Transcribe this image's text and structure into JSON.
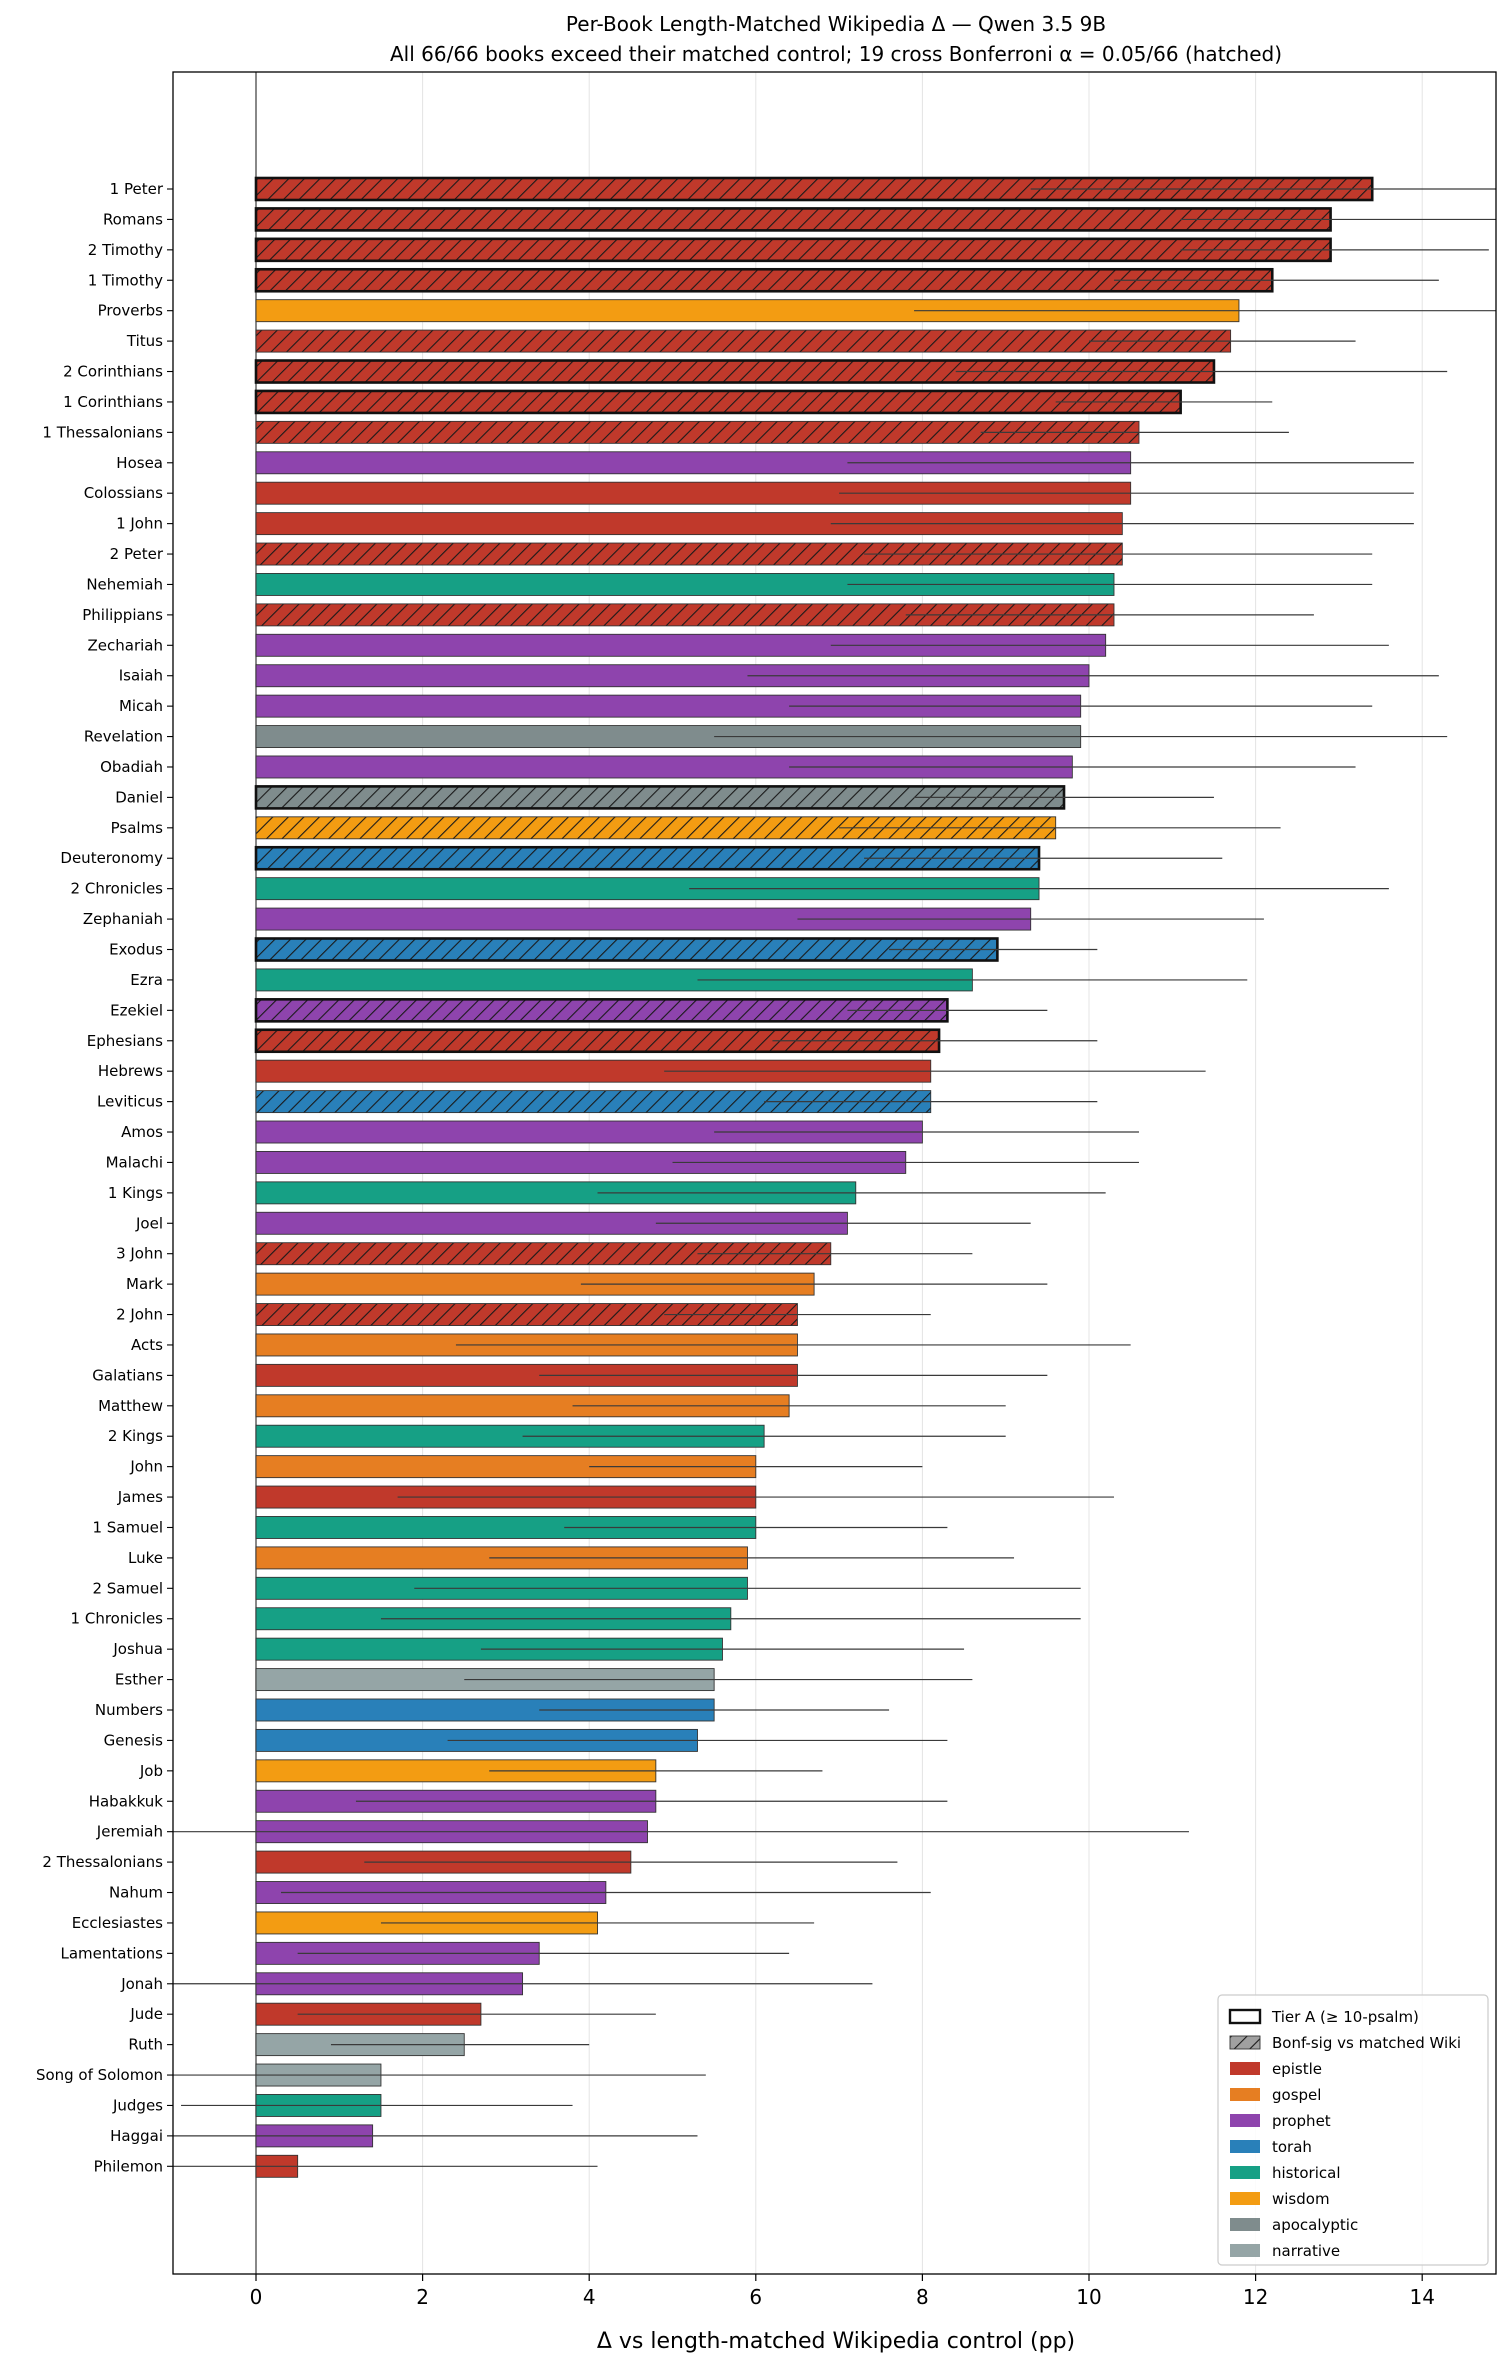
{
  "chart_data": {
    "type": "bar",
    "orientation": "horizontal",
    "title": "Per-Book Length-Matched Wikipedia Δ — Qwen 3.5 9B",
    "subtitle": "All 66/66 books exceed their matched control; 19 cross Bonferroni α = 0.05/66 (hatched)",
    "xlabel": "Δ vs length-matched Wikipedia control (pp)",
    "ylabel": "",
    "xlim": [
      -1.0,
      14.9
    ],
    "xticks": [
      0,
      2,
      4,
      6,
      8,
      10,
      12,
      14
    ],
    "grid": "vertical",
    "legend_position": "bottom-right",
    "colors": {
      "epistle": "#c0392b",
      "gospel": "#e67e22",
      "prophet": "#8e44ad",
      "torah": "#2980b9",
      "historical": "#16a085",
      "wisdom": "#f39c12",
      "apocalyptic": "#7f8c8d",
      "narrative": "#95a5a6"
    },
    "legend": [
      {
        "label": "Tier A (≥ 10-psalm)",
        "kind": "tier"
      },
      {
        "label": "Bonf-sig vs matched Wiki",
        "kind": "hatch"
      },
      {
        "label": "epistle",
        "kind": "epistle"
      },
      {
        "label": "gospel",
        "kind": "gospel"
      },
      {
        "label": "prophet",
        "kind": "prophet"
      },
      {
        "label": "torah",
        "kind": "torah"
      },
      {
        "label": "historical",
        "kind": "historical"
      },
      {
        "label": "wisdom",
        "kind": "wisdom"
      },
      {
        "label": "apocalyptic",
        "kind": "apocalyptic"
      },
      {
        "label": "narrative",
        "kind": "narrative"
      }
    ],
    "bars": [
      {
        "book": "1 Peter",
        "value": 13.4,
        "ci": [
          9.3,
          17.5
        ],
        "category": "epistle",
        "bonf": true,
        "tierA": true
      },
      {
        "book": "Romans",
        "value": 12.9,
        "ci": [
          11.1,
          14.9
        ],
        "category": "epistle",
        "bonf": true,
        "tierA": true
      },
      {
        "book": "2 Timothy",
        "value": 12.9,
        "ci": [
          11.1,
          14.8
        ],
        "category": "epistle",
        "bonf": true,
        "tierA": true
      },
      {
        "book": "1 Timothy",
        "value": 12.2,
        "ci": [
          10.3,
          14.2
        ],
        "category": "epistle",
        "bonf": true,
        "tierA": true
      },
      {
        "book": "Proverbs",
        "value": 11.8,
        "ci": [
          7.9,
          15.4
        ],
        "category": "wisdom",
        "bonf": false,
        "tierA": false
      },
      {
        "book": "Titus",
        "value": 11.7,
        "ci": [
          10.0,
          13.2
        ],
        "category": "epistle",
        "bonf": true,
        "tierA": false
      },
      {
        "book": "2 Corinthians",
        "value": 11.5,
        "ci": [
          8.4,
          14.3
        ],
        "category": "epistle",
        "bonf": true,
        "tierA": true
      },
      {
        "book": "1 Corinthians",
        "value": 11.1,
        "ci": [
          9.6,
          12.2
        ],
        "category": "epistle",
        "bonf": true,
        "tierA": true
      },
      {
        "book": "1 Thessalonians",
        "value": 10.6,
        "ci": [
          8.7,
          12.4
        ],
        "category": "epistle",
        "bonf": true,
        "tierA": false
      },
      {
        "book": "Hosea",
        "value": 10.5,
        "ci": [
          7.1,
          13.9
        ],
        "category": "prophet",
        "bonf": false,
        "tierA": false
      },
      {
        "book": "Colossians",
        "value": 10.5,
        "ci": [
          7.0,
          13.9
        ],
        "category": "epistle",
        "bonf": false,
        "tierA": false
      },
      {
        "book": "1 John",
        "value": 10.4,
        "ci": [
          6.9,
          13.9
        ],
        "category": "epistle",
        "bonf": false,
        "tierA": false
      },
      {
        "book": "2 Peter",
        "value": 10.4,
        "ci": [
          7.3,
          13.4
        ],
        "category": "epistle",
        "bonf": true,
        "tierA": false
      },
      {
        "book": "Nehemiah",
        "value": 10.3,
        "ci": [
          7.1,
          13.4
        ],
        "category": "historical",
        "bonf": false,
        "tierA": false
      },
      {
        "book": "Philippians",
        "value": 10.3,
        "ci": [
          7.8,
          12.7
        ],
        "category": "epistle",
        "bonf": true,
        "tierA": false
      },
      {
        "book": "Zechariah",
        "value": 10.2,
        "ci": [
          6.9,
          13.6
        ],
        "category": "prophet",
        "bonf": false,
        "tierA": false
      },
      {
        "book": "Isaiah",
        "value": 10.0,
        "ci": [
          5.9,
          14.2
        ],
        "category": "prophet",
        "bonf": false,
        "tierA": false
      },
      {
        "book": "Micah",
        "value": 9.9,
        "ci": [
          6.4,
          13.4
        ],
        "category": "prophet",
        "bonf": false,
        "tierA": false
      },
      {
        "book": "Revelation",
        "value": 9.9,
        "ci": [
          5.5,
          14.3
        ],
        "category": "apocalyptic",
        "bonf": false,
        "tierA": false
      },
      {
        "book": "Obadiah",
        "value": 9.8,
        "ci": [
          6.4,
          13.2
        ],
        "category": "prophet",
        "bonf": false,
        "tierA": false
      },
      {
        "book": "Daniel",
        "value": 9.7,
        "ci": [
          7.9,
          11.5
        ],
        "category": "apocalyptic",
        "bonf": true,
        "tierA": true
      },
      {
        "book": "Psalms",
        "value": 9.6,
        "ci": [
          7.0,
          12.3
        ],
        "category": "wisdom",
        "bonf": true,
        "tierA": false
      },
      {
        "book": "Deuteronomy",
        "value": 9.4,
        "ci": [
          7.3,
          11.6
        ],
        "category": "torah",
        "bonf": true,
        "tierA": true
      },
      {
        "book": "2 Chronicles",
        "value": 9.4,
        "ci": [
          5.2,
          13.6
        ],
        "category": "historical",
        "bonf": false,
        "tierA": false
      },
      {
        "book": "Zephaniah",
        "value": 9.3,
        "ci": [
          6.5,
          12.1
        ],
        "category": "prophet",
        "bonf": false,
        "tierA": false
      },
      {
        "book": "Exodus",
        "value": 8.9,
        "ci": [
          7.6,
          10.1
        ],
        "category": "torah",
        "bonf": true,
        "tierA": true
      },
      {
        "book": "Ezra",
        "value": 8.6,
        "ci": [
          5.3,
          11.9
        ],
        "category": "historical",
        "bonf": false,
        "tierA": false
      },
      {
        "book": "Ezekiel",
        "value": 8.3,
        "ci": [
          7.1,
          9.5
        ],
        "category": "prophet",
        "bonf": true,
        "tierA": true
      },
      {
        "book": "Ephesians",
        "value": 8.2,
        "ci": [
          6.2,
          10.1
        ],
        "category": "epistle",
        "bonf": true,
        "tierA": true
      },
      {
        "book": "Hebrews",
        "value": 8.1,
        "ci": [
          4.9,
          11.4
        ],
        "category": "epistle",
        "bonf": false,
        "tierA": false
      },
      {
        "book": "Leviticus",
        "value": 8.1,
        "ci": [
          6.1,
          10.1
        ],
        "category": "torah",
        "bonf": true,
        "tierA": false
      },
      {
        "book": "Amos",
        "value": 8.0,
        "ci": [
          5.5,
          10.6
        ],
        "category": "prophet",
        "bonf": false,
        "tierA": false
      },
      {
        "book": "Malachi",
        "value": 7.8,
        "ci": [
          5.0,
          10.6
        ],
        "category": "prophet",
        "bonf": false,
        "tierA": false
      },
      {
        "book": "1 Kings",
        "value": 7.2,
        "ci": [
          4.1,
          10.2
        ],
        "category": "historical",
        "bonf": false,
        "tierA": false
      },
      {
        "book": "Joel",
        "value": 7.1,
        "ci": [
          4.8,
          9.3
        ],
        "category": "prophet",
        "bonf": false,
        "tierA": false
      },
      {
        "book": "3 John",
        "value": 6.9,
        "ci": [
          5.3,
          8.6
        ],
        "category": "epistle",
        "bonf": true,
        "tierA": false
      },
      {
        "book": "Mark",
        "value": 6.7,
        "ci": [
          3.9,
          9.5
        ],
        "category": "gospel",
        "bonf": false,
        "tierA": false
      },
      {
        "book": "2 John",
        "value": 6.5,
        "ci": [
          4.9,
          8.1
        ],
        "category": "epistle",
        "bonf": true,
        "tierA": false
      },
      {
        "book": "Acts",
        "value": 6.5,
        "ci": [
          2.4,
          10.5
        ],
        "category": "gospel",
        "bonf": false,
        "tierA": false
      },
      {
        "book": "Galatians",
        "value": 6.5,
        "ci": [
          3.4,
          9.5
        ],
        "category": "epistle",
        "bonf": false,
        "tierA": false
      },
      {
        "book": "Matthew",
        "value": 6.4,
        "ci": [
          3.8,
          9.0
        ],
        "category": "gospel",
        "bonf": false,
        "tierA": false
      },
      {
        "book": "2 Kings",
        "value": 6.1,
        "ci": [
          3.2,
          9.0
        ],
        "category": "historical",
        "bonf": false,
        "tierA": false
      },
      {
        "book": "John",
        "value": 6.0,
        "ci": [
          4.0,
          8.0
        ],
        "category": "gospel",
        "bonf": false,
        "tierA": false
      },
      {
        "book": "James",
        "value": 6.0,
        "ci": [
          1.7,
          10.3
        ],
        "category": "epistle",
        "bonf": false,
        "tierA": false
      },
      {
        "book": "1 Samuel",
        "value": 6.0,
        "ci": [
          3.7,
          8.3
        ],
        "category": "historical",
        "bonf": false,
        "tierA": false
      },
      {
        "book": "Luke",
        "value": 5.9,
        "ci": [
          2.8,
          9.1
        ],
        "category": "gospel",
        "bonf": false,
        "tierA": false
      },
      {
        "book": "2 Samuel",
        "value": 5.9,
        "ci": [
          1.9,
          9.9
        ],
        "category": "historical",
        "bonf": false,
        "tierA": false
      },
      {
        "book": "1 Chronicles",
        "value": 5.7,
        "ci": [
          1.5,
          9.9
        ],
        "category": "historical",
        "bonf": false,
        "tierA": false
      },
      {
        "book": "Joshua",
        "value": 5.6,
        "ci": [
          2.7,
          8.5
        ],
        "category": "historical",
        "bonf": false,
        "tierA": false
      },
      {
        "book": "Esther",
        "value": 5.5,
        "ci": [
          2.5,
          8.6
        ],
        "category": "narrative",
        "bonf": false,
        "tierA": false
      },
      {
        "book": "Numbers",
        "value": 5.5,
        "ci": [
          3.4,
          7.6
        ],
        "category": "torah",
        "bonf": false,
        "tierA": false
      },
      {
        "book": "Genesis",
        "value": 5.3,
        "ci": [
          2.3,
          8.3
        ],
        "category": "torah",
        "bonf": false,
        "tierA": false
      },
      {
        "book": "Job",
        "value": 4.8,
        "ci": [
          2.8,
          6.8
        ],
        "category": "wisdom",
        "bonf": false,
        "tierA": false
      },
      {
        "book": "Habakkuk",
        "value": 4.8,
        "ci": [
          1.2,
          8.3
        ],
        "category": "prophet",
        "bonf": false,
        "tierA": false
      },
      {
        "book": "Jeremiah",
        "value": 4.7,
        "ci": [
          -1.8,
          11.2
        ],
        "category": "prophet",
        "bonf": false,
        "tierA": false
      },
      {
        "book": "2 Thessalonians",
        "value": 4.5,
        "ci": [
          1.3,
          7.7
        ],
        "category": "epistle",
        "bonf": false,
        "tierA": false
      },
      {
        "book": "Nahum",
        "value": 4.2,
        "ci": [
          0.3,
          8.1
        ],
        "category": "prophet",
        "bonf": false,
        "tierA": false
      },
      {
        "book": "Ecclesiastes",
        "value": 4.1,
        "ci": [
          1.5,
          6.7
        ],
        "category": "wisdom",
        "bonf": false,
        "tierA": false
      },
      {
        "book": "Lamentations",
        "value": 3.4,
        "ci": [
          0.5,
          6.4
        ],
        "category": "prophet",
        "bonf": false,
        "tierA": false
      },
      {
        "book": "Jonah",
        "value": 3.2,
        "ci": [
          -1.0,
          7.4
        ],
        "category": "prophet",
        "bonf": false,
        "tierA": false
      },
      {
        "book": "Jude",
        "value": 2.7,
        "ci": [
          0.5,
          4.8
        ],
        "category": "epistle",
        "bonf": false,
        "tierA": false
      },
      {
        "book": "Ruth",
        "value": 2.5,
        "ci": [
          0.9,
          4.0
        ],
        "category": "narrative",
        "bonf": false,
        "tierA": false
      },
      {
        "book": "Song of Solomon",
        "value": 1.5,
        "ci": [
          -2.4,
          5.4
        ],
        "category": "narrative",
        "bonf": false,
        "tierA": false
      },
      {
        "book": "Judges",
        "value": 1.5,
        "ci": [
          -0.9,
          3.8
        ],
        "category": "historical",
        "bonf": false,
        "tierA": false
      },
      {
        "book": "Haggai",
        "value": 1.4,
        "ci": [
          -2.6,
          5.3
        ],
        "category": "prophet",
        "bonf": false,
        "tierA": false
      },
      {
        "book": "Philemon",
        "value": 0.5,
        "ci": [
          -3.1,
          4.1
        ],
        "category": "epistle",
        "bonf": false,
        "tierA": false
      }
    ]
  }
}
